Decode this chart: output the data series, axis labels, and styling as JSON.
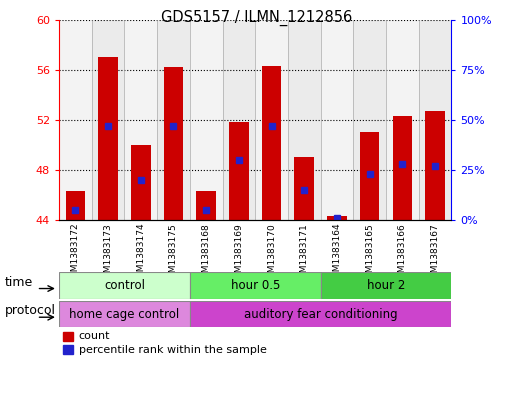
{
  "title": "GDS5157 / ILMN_1212856",
  "samples": [
    "GSM1383172",
    "GSM1383173",
    "GSM1383174",
    "GSM1383175",
    "GSM1383168",
    "GSM1383169",
    "GSM1383170",
    "GSM1383171",
    "GSM1383164",
    "GSM1383165",
    "GSM1383166",
    "GSM1383167"
  ],
  "count_values": [
    46.3,
    57.0,
    50.0,
    56.2,
    46.3,
    51.8,
    56.3,
    49.0,
    44.3,
    51.0,
    52.3,
    52.7
  ],
  "percentile_values": [
    5,
    47,
    20,
    47,
    5,
    30,
    47,
    15,
    1,
    23,
    28,
    27
  ],
  "ymin": 44,
  "ymax": 60,
  "yticks_left": [
    44,
    48,
    52,
    56,
    60
  ],
  "yticks_right": [
    0,
    25,
    50,
    75,
    100
  ],
  "bar_color": "#cc0000",
  "dot_color": "#2222cc",
  "time_groups": [
    {
      "label": "control",
      "start": 0,
      "end": 4,
      "color": "#ccffcc"
    },
    {
      "label": "hour 0.5",
      "start": 4,
      "end": 8,
      "color": "#66ee66"
    },
    {
      "label": "hour 2",
      "start": 8,
      "end": 12,
      "color": "#44cc44"
    }
  ],
  "protocol_groups": [
    {
      "label": "home cage control",
      "start": 0,
      "end": 4,
      "color": "#dd88dd"
    },
    {
      "label": "auditory fear conditioning",
      "start": 4,
      "end": 12,
      "color": "#cc44cc"
    }
  ],
  "legend_count_color": "#cc0000",
  "legend_dot_color": "#2222cc"
}
